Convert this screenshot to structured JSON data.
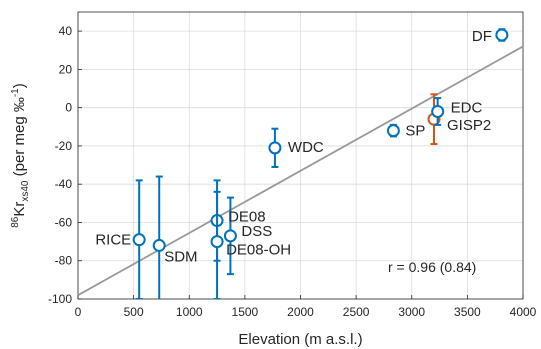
{
  "chart_data": {
    "type": "scatter",
    "xlabel": "Elevation (m a.s.l.)",
    "ylabel": {
      "sup": "86",
      "main": "Kr",
      "sub": "xs40",
      "units": " (per meg ‰",
      "units_sup": "-1",
      "units_close": ")"
    },
    "xlim": [
      0,
      4000
    ],
    "ylim": [
      -100,
      50
    ],
    "xticks": [
      0,
      500,
      1000,
      1500,
      2000,
      2500,
      3000,
      3500,
      4000
    ],
    "yticks": [
      -100,
      -80,
      -60,
      -40,
      -20,
      0,
      20,
      40
    ],
    "grid": true,
    "regression": {
      "x": [
        0,
        4000
      ],
      "y": [
        -98,
        32
      ]
    },
    "annotation": "r = 0.96 (0.84)",
    "points": [
      {
        "label": "RICE",
        "x": 550,
        "y": -69,
        "err_low": -100,
        "err_high": -38,
        "color": "#0072BD"
      },
      {
        "label": "SDM",
        "x": 730,
        "y": -72,
        "err_low": -108,
        "err_high": -36,
        "color": "#0072BD"
      },
      {
        "label": "DE08",
        "x": 1250,
        "y": -59,
        "err_low": -80,
        "err_high": -38,
        "color": "#0072BD"
      },
      {
        "label": "DE08-OH",
        "x": 1250,
        "y": -70,
        "err_low": -100,
        "err_high": -44,
        "color": "#0072BD"
      },
      {
        "label": "DSS",
        "x": 1370,
        "y": -67,
        "err_low": -87,
        "err_high": -47,
        "color": "#0072BD"
      },
      {
        "label": "WDC",
        "x": 1770,
        "y": -21,
        "err_low": -31,
        "err_high": -11,
        "color": "#0072BD"
      },
      {
        "label": "SP",
        "x": 2835,
        "y": -12,
        "err_low": -15,
        "err_high": -9,
        "color": "#0072BD"
      },
      {
        "label": "GISP2",
        "x": 3200,
        "y": -6,
        "err_low": -19,
        "err_high": 7,
        "color": "#D95319"
      },
      {
        "label": "EDC",
        "x": 3233,
        "y": -2,
        "err_low": -9,
        "err_high": 5,
        "color": "#0072BD"
      },
      {
        "label": "DF",
        "x": 3810,
        "y": 38,
        "err_low": 35,
        "err_high": 41,
        "color": "#0072BD"
      }
    ]
  }
}
